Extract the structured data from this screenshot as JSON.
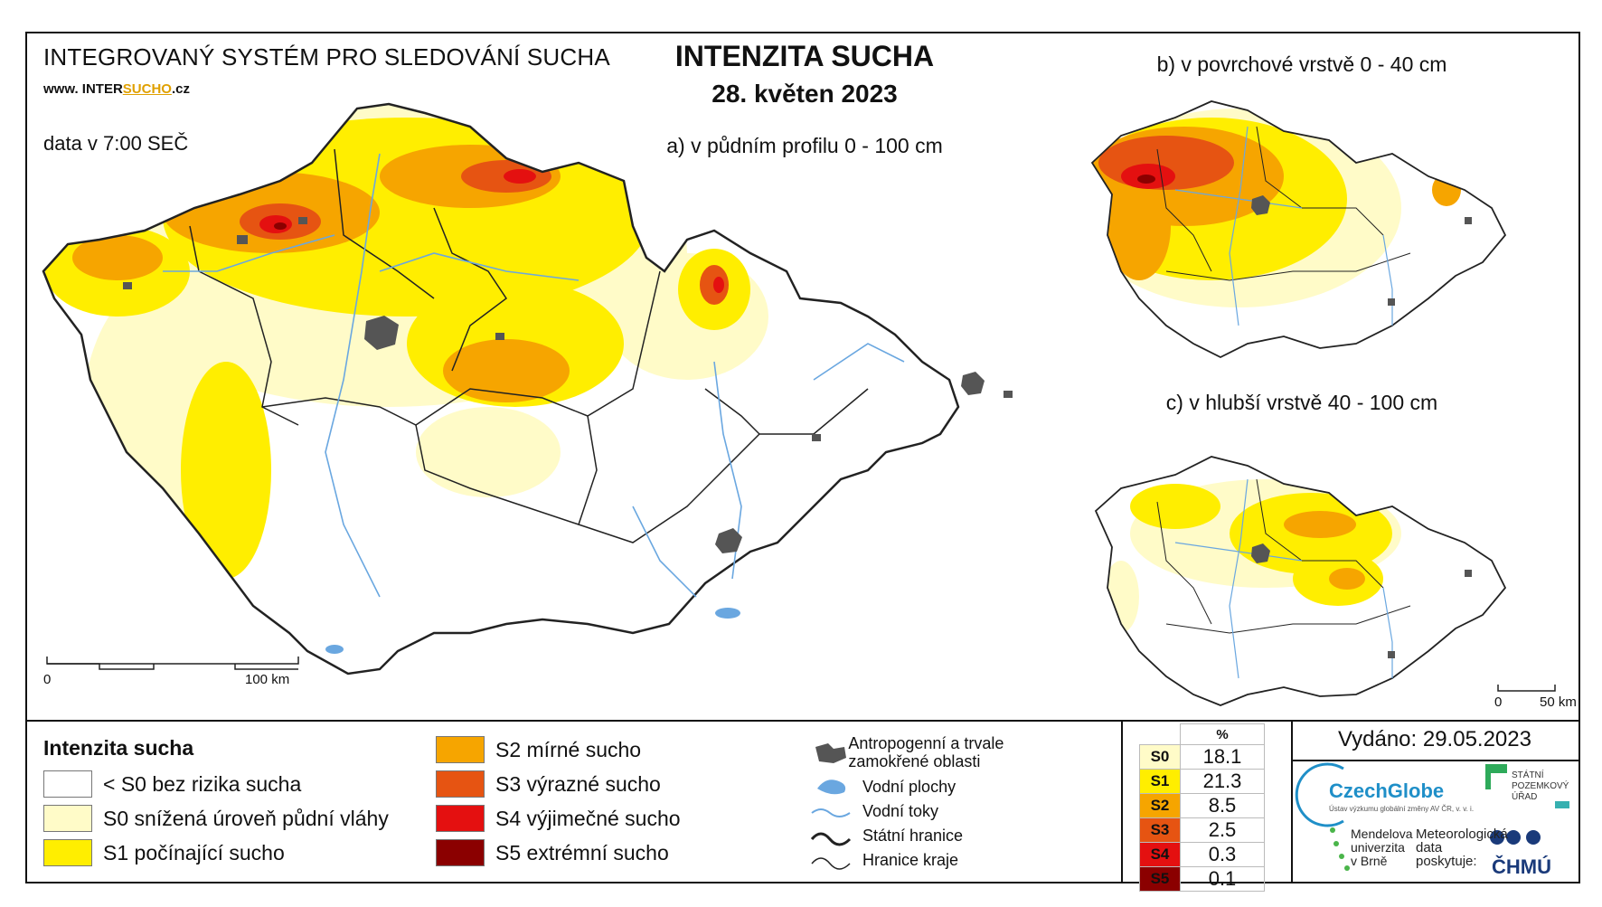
{
  "header": {
    "system": "INTEGROVANÝ SYSTÉM PRO SLEDOVÁNÍ SUCHA",
    "website_prefix": "www. INTER",
    "website_brand": "SUCHO",
    "website_suffix": ".cz",
    "data_time": "data v 7:00 SEČ",
    "title": "INTENZITA SUCHA",
    "date": "28. květen 2023"
  },
  "maps": {
    "main_label": "a) v půdním profilu 0 - 100 cm",
    "surface_label": "b) v povrchové vrstvě 0 - 40 cm",
    "deep_label": "c) v hlubší vrstvě 40 - 100 cm",
    "main_scale": {
      "start": "0",
      "end": "100 km"
    },
    "small_scale": {
      "start": "0",
      "end": "50 km"
    }
  },
  "legend": {
    "title": "Intenzita sucha",
    "classes": [
      {
        "label": "< S0 bez rizika sucha",
        "color": "#ffffff"
      },
      {
        "label": "S0 snížená úroveň půdní vláhy",
        "color": "#fffbc8"
      },
      {
        "label": "S1 počínající sucho",
        "color": "#ffee00"
      },
      {
        "label": "S2 mírné sucho",
        "color": "#f6a500"
      },
      {
        "label": "S3 výrazné sucho",
        "color": "#e65412"
      },
      {
        "label": "S4 výjimečné sucho",
        "color": "#e41010"
      },
      {
        "label": "S5 extrémní sucho",
        "color": "#8b0000"
      }
    ],
    "symbols": [
      {
        "label": "Antropogenní a trvale zamokřené oblasti",
        "icon": "urban-area-icon"
      },
      {
        "label": "Vodní plochy",
        "icon": "water-body-icon"
      },
      {
        "label": "Vodní toky",
        "icon": "river-icon"
      },
      {
        "label": "Státní hranice",
        "icon": "state-border-icon"
      },
      {
        "label": "Hranice kraje",
        "icon": "region-border-icon"
      }
    ]
  },
  "percentages": {
    "header": "%",
    "rows": [
      {
        "class": "S0",
        "value": "18.1",
        "color": "#fffbc8"
      },
      {
        "class": "S1",
        "value": "21.3",
        "color": "#ffee00"
      },
      {
        "class": "S2",
        "value": "8.5",
        "color": "#f6a500"
      },
      {
        "class": "S3",
        "value": "2.5",
        "color": "#e65412"
      },
      {
        "class": "S4",
        "value": "0.3",
        "color": "#e41010"
      },
      {
        "class": "S5",
        "value": "0.1",
        "color": "#8b0000"
      }
    ]
  },
  "footer": {
    "issued": "Vydáno: 29.05.2023",
    "czechglobe": "CzechGlobe",
    "czechglobe_sub": "Ústav výzkumu globální změny AV ČR, v. v. i.",
    "spu": "STÁTNÍ POZEMKOVÝ ÚŘAD",
    "mendel": "Mendelova univerzita v Brně",
    "met_data": "Meteorologická data poskytuje:",
    "chmu": "ČHMÚ"
  }
}
